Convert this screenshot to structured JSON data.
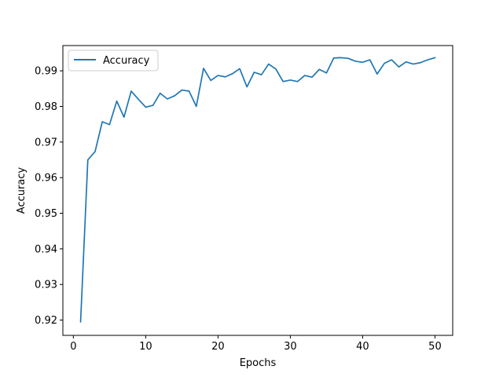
{
  "chart_data": {
    "type": "line",
    "title": "",
    "xlabel": "Epochs",
    "ylabel": "Accuracy",
    "xlim": [
      -1.45,
      52.45
    ],
    "ylim": [
      0.9157,
      0.9971
    ],
    "xticks": [
      0,
      10,
      20,
      30,
      40,
      50
    ],
    "yticks": [
      0.92,
      0.93,
      0.94,
      0.95,
      0.96,
      0.97,
      0.98,
      0.99
    ],
    "ytick_labels": [
      "0.92",
      "0.93",
      "0.94",
      "0.95",
      "0.96",
      "0.97",
      "0.98",
      "0.99"
    ],
    "grid": false,
    "legend": "upper-left",
    "series": [
      {
        "name": "Accuracy",
        "color": "#1f77b4",
        "x": [
          1,
          2,
          3,
          4,
          5,
          6,
          7,
          8,
          9,
          10,
          11,
          12,
          13,
          14,
          15,
          16,
          17,
          18,
          19,
          20,
          21,
          22,
          23,
          24,
          25,
          26,
          27,
          28,
          29,
          30,
          31,
          32,
          33,
          34,
          35,
          36,
          37,
          38,
          39,
          40,
          41,
          42,
          43,
          44,
          45,
          46,
          47,
          48,
          49,
          50
        ],
        "y": [
          0.9195,
          0.965,
          0.9673,
          0.9757,
          0.9749,
          0.9815,
          0.977,
          0.9843,
          0.982,
          0.9798,
          0.9803,
          0.9837,
          0.9821,
          0.983,
          0.9846,
          0.9843,
          0.98,
          0.9907,
          0.9873,
          0.9887,
          0.9883,
          0.9892,
          0.9906,
          0.9855,
          0.9896,
          0.9889,
          0.9919,
          0.9905,
          0.987,
          0.9874,
          0.987,
          0.9887,
          0.9882,
          0.9904,
          0.9894,
          0.9936,
          0.9937,
          0.9935,
          0.9927,
          0.9924,
          0.9931,
          0.9891,
          0.9921,
          0.9931,
          0.9911,
          0.9925,
          0.9919,
          0.9923,
          0.9931,
          0.9937
        ]
      }
    ]
  }
}
